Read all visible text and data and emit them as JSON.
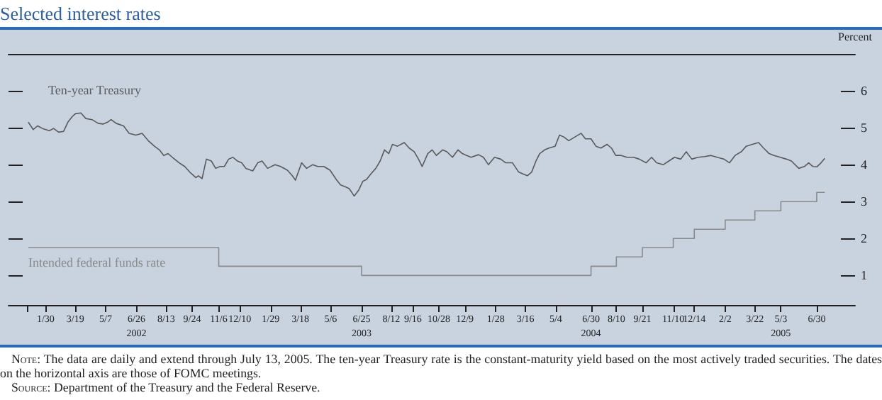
{
  "chart_data": {
    "type": "line",
    "title": "Selected interest rates",
    "ylabel": "Percent",
    "xlim": [
      "2001-12-01",
      "2005-08-31"
    ],
    "ylim": [
      0.2,
      7
    ],
    "yticks": [
      1,
      2,
      3,
      4,
      5,
      6
    ],
    "xticks": [
      {
        "value": "2002-01-01",
        "label": null
      },
      {
        "value": "2002-01-30",
        "label": "1/30"
      },
      {
        "value": "2002-03-19",
        "label": "3/19"
      },
      {
        "value": "2002-05-07",
        "label": "5/7"
      },
      {
        "value": "2002-06-26",
        "label": "6/26\n2002"
      },
      {
        "value": "2002-08-13",
        "label": "8/13"
      },
      {
        "value": "2002-09-24",
        "label": "9/24"
      },
      {
        "value": "2002-11-06",
        "label": "11/6"
      },
      {
        "value": "2002-12-10",
        "label": "12/10"
      },
      {
        "value": "2003-01-29",
        "label": "1/29"
      },
      {
        "value": "2003-03-18",
        "label": "3/18"
      },
      {
        "value": "2003-05-06",
        "label": "5/6"
      },
      {
        "value": "2003-06-25",
        "label": "6/25\n2003"
      },
      {
        "value": "2003-08-12",
        "label": "8/12"
      },
      {
        "value": "2003-09-16",
        "label": "9/16"
      },
      {
        "value": "2003-10-28",
        "label": "10/28"
      },
      {
        "value": "2003-12-09",
        "label": "12/9"
      },
      {
        "value": "2004-01-28",
        "label": "1/28"
      },
      {
        "value": "2004-03-16",
        "label": "3/16"
      },
      {
        "value": "2004-05-04",
        "label": "5/4"
      },
      {
        "value": "2004-06-30",
        "label": "6/30\n2004"
      },
      {
        "value": "2004-08-10",
        "label": "8/10"
      },
      {
        "value": "2004-09-21",
        "label": "9/21"
      },
      {
        "value": "2004-11-10",
        "label": "11/10"
      },
      {
        "value": "2004-12-14",
        "label": "12/14"
      },
      {
        "value": "2005-02-02",
        "label": "2/2"
      },
      {
        "value": "2005-03-22",
        "label": "3/22"
      },
      {
        "value": "2005-05-03",
        "label": "5/3\n2005"
      },
      {
        "value": "2005-06-30",
        "label": "6/30"
      }
    ],
    "grid": false,
    "legend": false,
    "tick_labels": "xy",
    "series": [
      {
        "name": "Ten-year Treasury",
        "color": "#5a5a5a",
        "x": [
          "2002-01-02",
          "2002-01-10",
          "2002-01-17",
          "2002-01-25",
          "2002-02-05",
          "2002-02-12",
          "2002-02-20",
          "2002-02-28",
          "2002-03-07",
          "2002-03-14",
          "2002-03-19",
          "2002-03-28",
          "2002-04-05",
          "2002-04-15",
          "2002-04-25",
          "2002-05-03",
          "2002-05-10",
          "2002-05-16",
          "2002-05-24",
          "2002-06-05",
          "2002-06-14",
          "2002-06-25",
          "2002-07-05",
          "2002-07-15",
          "2002-07-25",
          "2002-08-02",
          "2002-08-09",
          "2002-08-16",
          "2002-08-23",
          "2002-09-03",
          "2002-09-12",
          "2002-09-20",
          "2002-09-30",
          "2002-10-04",
          "2002-10-10",
          "2002-10-17",
          "2002-10-25",
          "2002-11-01",
          "2002-11-08",
          "2002-11-15",
          "2002-11-22",
          "2002-11-29",
          "2002-12-06",
          "2002-12-13",
          "2002-12-20",
          "2002-12-31",
          "2003-01-08",
          "2003-01-15",
          "2003-01-24",
          "2003-02-05",
          "2003-02-14",
          "2003-02-25",
          "2003-03-05",
          "2003-03-10",
          "2003-03-20",
          "2003-03-28",
          "2003-04-07",
          "2003-04-15",
          "2003-04-25",
          "2003-05-05",
          "2003-05-15",
          "2003-05-22",
          "2003-05-30",
          "2003-06-05",
          "2003-06-13",
          "2003-06-20",
          "2003-06-27",
          "2003-07-03",
          "2003-07-10",
          "2003-07-18",
          "2003-07-25",
          "2003-08-01",
          "2003-08-08",
          "2003-08-14",
          "2003-08-22",
          "2003-09-02",
          "2003-09-10",
          "2003-09-18",
          "2003-09-25",
          "2003-10-01",
          "2003-10-10",
          "2003-10-17",
          "2003-10-24",
          "2003-11-03",
          "2003-11-10",
          "2003-11-19",
          "2003-11-28",
          "2003-12-05",
          "2003-12-12",
          "2003-12-19",
          "2003-12-31",
          "2004-01-08",
          "2004-01-16",
          "2004-01-26",
          "2004-02-05",
          "2004-02-13",
          "2004-02-24",
          "2004-03-05",
          "2004-03-12",
          "2004-03-19",
          "2004-03-26",
          "2004-04-02",
          "2004-04-08",
          "2004-04-16",
          "2004-04-23",
          "2004-05-03",
          "2004-05-10",
          "2004-05-17",
          "2004-05-25",
          "2004-06-04",
          "2004-06-14",
          "2004-06-21",
          "2004-06-30",
          "2004-07-08",
          "2004-07-16",
          "2004-07-26",
          "2004-08-02",
          "2004-08-09",
          "2004-08-18",
          "2004-08-27",
          "2004-09-07",
          "2004-09-16",
          "2004-09-27",
          "2004-10-06",
          "2004-10-14",
          "2004-10-25",
          "2004-11-03",
          "2004-11-12",
          "2004-11-22",
          "2004-12-01",
          "2004-12-10",
          "2004-12-20",
          "2004-12-31",
          "2005-01-10",
          "2005-01-20",
          "2005-01-31",
          "2005-02-09",
          "2005-02-18",
          "2005-02-28",
          "2005-03-08",
          "2005-03-18",
          "2005-03-28",
          "2005-04-05",
          "2005-04-14",
          "2005-04-22",
          "2005-05-02",
          "2005-05-12",
          "2005-05-20",
          "2005-06-01",
          "2005-06-10",
          "2005-06-17",
          "2005-06-24",
          "2005-06-30",
          "2005-07-07",
          "2005-07-13"
        ],
        "values": [
          5.15,
          4.95,
          5.05,
          4.98,
          4.92,
          4.98,
          4.88,
          4.9,
          5.15,
          5.3,
          5.38,
          5.4,
          5.25,
          5.22,
          5.12,
          5.1,
          5.15,
          5.22,
          5.12,
          5.05,
          4.85,
          4.8,
          4.85,
          4.65,
          4.5,
          4.4,
          4.25,
          4.3,
          4.2,
          4.05,
          3.95,
          3.8,
          3.65,
          3.7,
          3.62,
          4.15,
          4.1,
          3.9,
          3.95,
          3.95,
          4.15,
          4.2,
          4.1,
          4.05,
          3.9,
          3.83,
          4.05,
          4.1,
          3.9,
          4.0,
          3.95,
          3.85,
          3.7,
          3.58,
          4.05,
          3.9,
          4.0,
          3.95,
          3.95,
          3.85,
          3.6,
          3.45,
          3.4,
          3.35,
          3.15,
          3.3,
          3.55,
          3.6,
          3.75,
          3.9,
          4.1,
          4.4,
          4.3,
          4.55,
          4.5,
          4.6,
          4.45,
          4.35,
          4.15,
          3.95,
          4.3,
          4.4,
          4.25,
          4.4,
          4.35,
          4.2,
          4.4,
          4.3,
          4.25,
          4.2,
          4.27,
          4.2,
          4.0,
          4.2,
          4.15,
          4.05,
          4.05,
          3.8,
          3.75,
          3.7,
          3.8,
          4.1,
          4.3,
          4.4,
          4.45,
          4.5,
          4.8,
          4.75,
          4.65,
          4.75,
          4.85,
          4.7,
          4.7,
          4.5,
          4.45,
          4.55,
          4.45,
          4.25,
          4.25,
          4.2,
          4.2,
          4.15,
          4.05,
          4.2,
          4.05,
          4.0,
          4.1,
          4.2,
          4.15,
          4.35,
          4.15,
          4.2,
          4.22,
          4.25,
          4.2,
          4.15,
          4.05,
          4.25,
          4.35,
          4.5,
          4.55,
          4.6,
          4.45,
          4.3,
          4.25,
          4.2,
          4.15,
          4.1,
          3.9,
          3.95,
          4.05,
          3.95,
          3.94,
          4.05,
          4.17
        ]
      },
      {
        "name": "Intended federal funds rate",
        "type": "step",
        "color": "#8a8a8a",
        "x": [
          "2002-01-02",
          "2002-11-06",
          "2003-06-25",
          "2004-06-30",
          "2004-08-10",
          "2004-09-21",
          "2004-11-10",
          "2004-12-14",
          "2005-02-02",
          "2005-03-22",
          "2005-05-03",
          "2005-06-30",
          "2005-07-13"
        ],
        "values": [
          1.75,
          1.25,
          1.0,
          1.25,
          1.5,
          1.75,
          2.0,
          2.25,
          2.5,
          2.75,
          3.0,
          3.25,
          3.25
        ]
      }
    ],
    "annotations": [
      "Note: The data are daily and extend through July 13, 2005. The ten-year Treasury rate is the constant-maturity yield based on the most actively traded securities. The dates on the horizontal axis are those of FOMC meetings.",
      "Source: Department of the Treasury and the Federal Reserve."
    ]
  }
}
